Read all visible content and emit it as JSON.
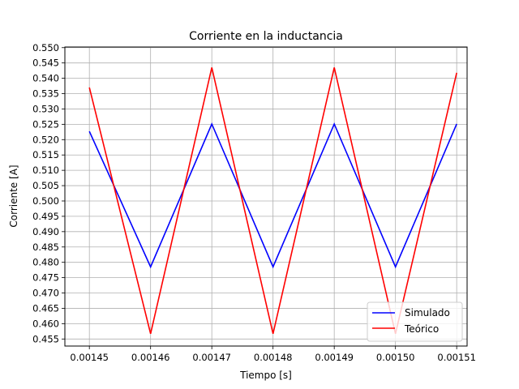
{
  "chart_data": {
    "type": "line",
    "title": "Corriente en la inductancia",
    "xlabel": "Tiempo [s]",
    "ylabel": "Corriente [A]",
    "xlim": [
      0.001446,
      0.0015117
    ],
    "ylim": [
      0.4527,
      0.5502
    ],
    "xticks": [
      "0.00145",
      "0.00146",
      "0.00147",
      "0.00148",
      "0.00149",
      "0.00150",
      "0.00151"
    ],
    "xtick_values": [
      0.00145,
      0.00146,
      0.00147,
      0.00148,
      0.00149,
      0.0015,
      0.00151
    ],
    "yticks": [
      "0.455",
      "0.460",
      "0.465",
      "0.470",
      "0.475",
      "0.480",
      "0.485",
      "0.490",
      "0.495",
      "0.500",
      "0.505",
      "0.510",
      "0.515",
      "0.520",
      "0.525",
      "0.530",
      "0.535",
      "0.540",
      "0.545",
      "0.550"
    ],
    "ytick_values": [
      0.455,
      0.46,
      0.465,
      0.47,
      0.475,
      0.48,
      0.485,
      0.49,
      0.495,
      0.5,
      0.505,
      0.51,
      0.515,
      0.52,
      0.525,
      0.53,
      0.535,
      0.54,
      0.545,
      0.55
    ],
    "grid": true,
    "legend_position": "lower-right",
    "series": [
      {
        "name": "Simulado",
        "color": "#0000ff",
        "x": [
          0.00145,
          0.00146,
          0.00147,
          0.00148,
          0.00149,
          0.0015,
          0.00151
        ],
        "y": [
          0.5227,
          0.4785,
          0.5251,
          0.4785,
          0.5251,
          0.4785,
          0.5251
        ]
      },
      {
        "name": "Teórico",
        "color": "#ff0000",
        "x": [
          0.00145,
          0.00146,
          0.00147,
          0.00148,
          0.00149,
          0.0015,
          0.00151
        ],
        "y": [
          0.537,
          0.4567,
          0.5435,
          0.4567,
          0.5435,
          0.4567,
          0.5418
        ]
      }
    ]
  }
}
